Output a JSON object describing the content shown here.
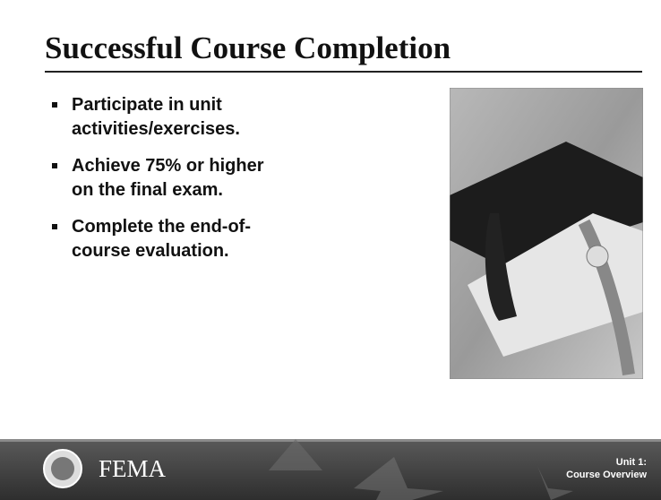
{
  "slide": {
    "title": "Successful Course Completion",
    "bullets": [
      [
        "Participate in unit",
        "activities/exercises."
      ],
      [
        "Achieve 75% or higher",
        "on the final exam."
      ],
      [
        "Complete the end-of-",
        "course evaluation."
      ]
    ],
    "footer": {
      "logo": "FEMA",
      "unit": [
        "Unit 1:",
        "Course Overview"
      ]
    }
  }
}
